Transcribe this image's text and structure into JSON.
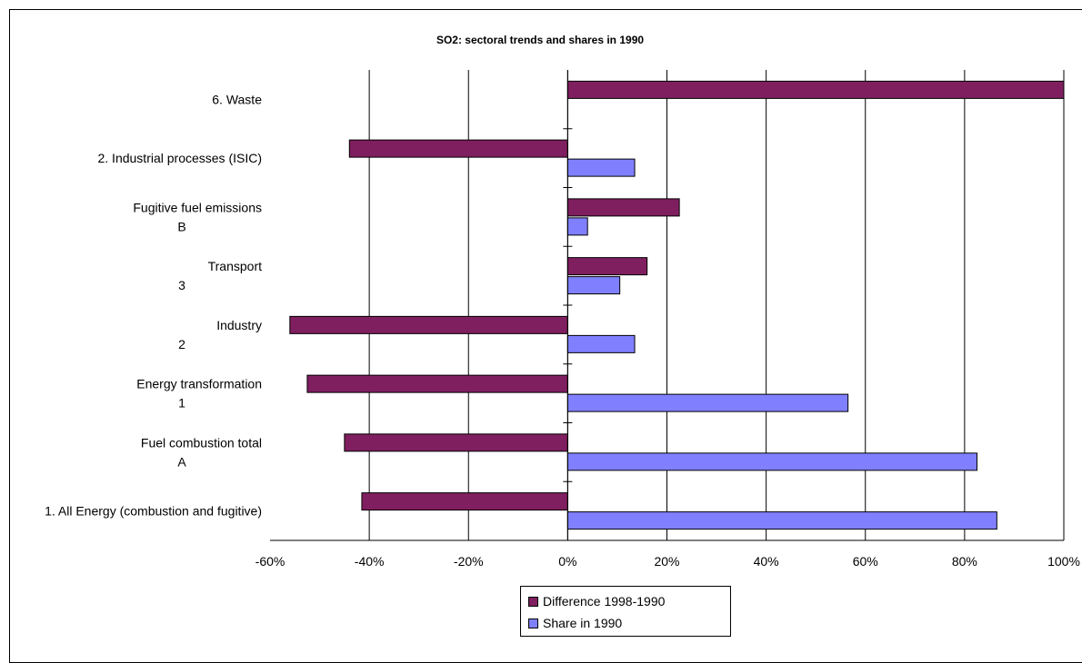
{
  "chart_data": {
    "type": "bar",
    "orientation": "horizontal",
    "title": "SO2: sectoral trends and shares in 1990",
    "categories": [
      [
        "6. Waste"
      ],
      [
        "2. Industrial processes (ISIC)"
      ],
      [
        "Fugitive fuel emissions",
        "B"
      ],
      [
        "Transport",
        "3"
      ],
      [
        "Industry",
        "2"
      ],
      [
        "Energy transformation",
        "1"
      ],
      [
        "Fuel combustion   total",
        "A"
      ],
      [
        "1. All Energy (combustion and fugitive)"
      ]
    ],
    "series": [
      {
        "name": "Difference 1998-1990",
        "color": "#7f1f5f",
        "values": [
          100,
          -44,
          22.5,
          16,
          -56,
          -52.5,
          -45,
          -41.5
        ]
      },
      {
        "name": "Share in 1990",
        "color": "#8080ff",
        "values": [
          null,
          13.5,
          4,
          10.5,
          13.5,
          56.5,
          82.5,
          86.5
        ]
      }
    ],
    "xlim": [
      -60,
      100
    ],
    "xticks": [
      "-60%",
      "-40%",
      "-20%",
      "0%",
      "20%",
      "40%",
      "60%",
      "80%",
      "100%"
    ],
    "grid": true,
    "legend_position": "bottom-center"
  }
}
